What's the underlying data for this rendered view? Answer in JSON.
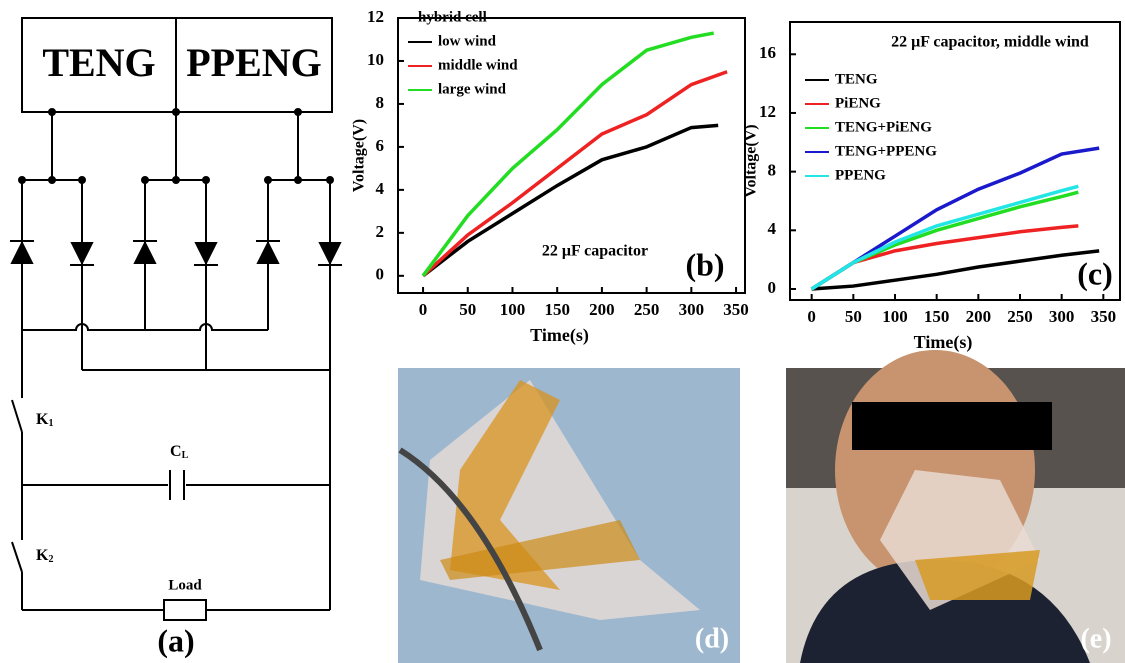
{
  "circuit": {
    "sources": [
      "TENG",
      "PPENG"
    ],
    "switches": [
      {
        "label": "K",
        "subscript": "1"
      },
      {
        "label": "K",
        "subscript": "2"
      }
    ],
    "capacitor": {
      "label": "C",
      "subscript": "L"
    },
    "load": "Load",
    "panel_label": "(a)"
  },
  "chart_data": [
    {
      "type": "line",
      "legend_title": "hybrid cell",
      "annotation": "22 μF capacitor",
      "panel_label": "(b)",
      "x_label": "Time(s)",
      "y_label": "Voltage(V)",
      "xlim": [
        -28,
        360
      ],
      "ylim": [
        -0.8,
        12
      ],
      "xticks": [
        0,
        50,
        100,
        150,
        200,
        250,
        300,
        350
      ],
      "yticks": [
        0,
        2,
        4,
        6,
        8,
        10,
        12
      ],
      "series": [
        {
          "name": "low wind",
          "color": "#000000",
          "x": [
            0,
            50,
            100,
            150,
            200,
            250,
            300,
            330
          ],
          "values": [
            0,
            1.6,
            2.9,
            4.2,
            5.4,
            6.0,
            6.9,
            7.0
          ]
        },
        {
          "name": "middle wind",
          "color": "#ee2222",
          "x": [
            0,
            50,
            100,
            150,
            200,
            250,
            300,
            340
          ],
          "values": [
            0,
            1.9,
            3.4,
            5.0,
            6.6,
            7.5,
            8.9,
            9.5
          ]
        },
        {
          "name": "large wind",
          "color": "#22dd22",
          "x": [
            0,
            50,
            100,
            150,
            200,
            250,
            300,
            325
          ],
          "values": [
            0,
            2.8,
            5.0,
            6.8,
            8.9,
            10.5,
            11.1,
            11.3
          ]
        }
      ]
    },
    {
      "type": "line",
      "title": "22 μF capacitor, middle wind",
      "panel_label": "(c)",
      "x_label": "Time(s)",
      "y_label": "Voltage(V)",
      "xlim": [
        -26,
        370
      ],
      "ylim": [
        -0.75,
        18.2
      ],
      "xticks": [
        0,
        50,
        100,
        150,
        200,
        250,
        300,
        350
      ],
      "yticks": [
        0,
        4,
        8,
        12,
        16
      ],
      "series": [
        {
          "name": "TENG",
          "color": "#000000",
          "x": [
            0,
            50,
            100,
            150,
            200,
            250,
            300,
            345
          ],
          "values": [
            0,
            0.2,
            0.6,
            1.0,
            1.5,
            1.9,
            2.3,
            2.6
          ]
        },
        {
          "name": "PiENG",
          "color": "#ee2222",
          "x": [
            0,
            50,
            100,
            150,
            200,
            250,
            300,
            320
          ],
          "values": [
            0,
            1.8,
            2.6,
            3.1,
            3.5,
            3.9,
            4.2,
            4.3
          ]
        },
        {
          "name": "TENG+PiENG",
          "color": "#22dd22",
          "x": [
            0,
            50,
            100,
            150,
            200,
            250,
            300,
            320
          ],
          "values": [
            0,
            1.8,
            3.0,
            4.0,
            4.8,
            5.6,
            6.3,
            6.6
          ]
        },
        {
          "name": "TENG+PPENG",
          "color": "#1a1acc",
          "x": [
            0,
            50,
            100,
            150,
            200,
            250,
            300,
            345
          ],
          "values": [
            0,
            1.8,
            3.6,
            5.4,
            6.8,
            7.9,
            9.2,
            9.6
          ]
        },
        {
          "name": "PPENG",
          "color": "#22e5e5",
          "x": [
            0,
            50,
            100,
            150,
            200,
            250,
            300,
            320
          ],
          "values": [
            0,
            1.8,
            3.2,
            4.3,
            5.1,
            5.9,
            6.7,
            7.0
          ]
        }
      ]
    }
  ],
  "photos": [
    {
      "panel_label": "(d)"
    },
    {
      "panel_label": "(e)"
    }
  ]
}
